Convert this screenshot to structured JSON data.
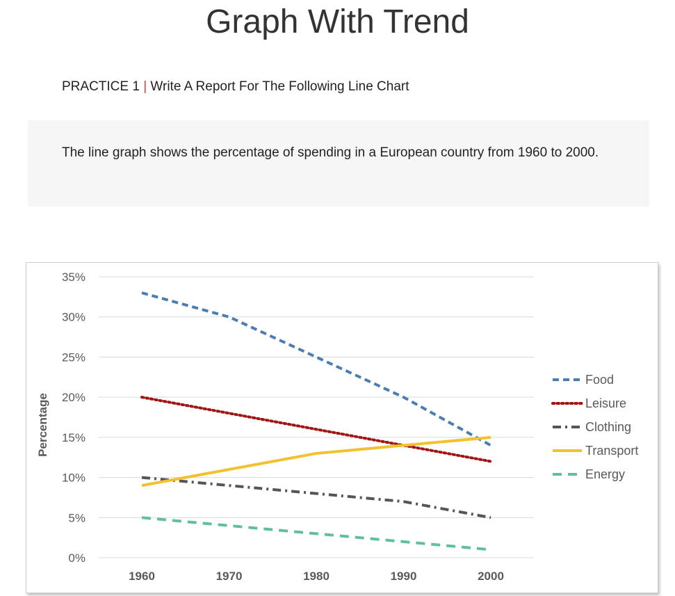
{
  "page": {
    "title": "Graph With  Trend",
    "practice_prefix": "PRACTICE 1",
    "practice_separator": "|",
    "practice_text": "Write A Report For The Following Line Chart",
    "description": "The line graph shows the percentage of spending in a European country from 1960 to 2000."
  },
  "chart_data": {
    "type": "line",
    "title": "",
    "xlabel": "",
    "ylabel": "Percentage",
    "categories": [
      "1960",
      "1970",
      "1980",
      "1990",
      "2000"
    ],
    "y_ticks": [
      "0%",
      "5%",
      "10%",
      "15%",
      "20%",
      "25%",
      "30%",
      "35%"
    ],
    "ylim": [
      0,
      35
    ],
    "grid": true,
    "legend_position": "right",
    "series": [
      {
        "name": "Food",
        "values": [
          33,
          30,
          25,
          20,
          14
        ],
        "color": "#4a7eb2",
        "style": "dashed"
      },
      {
        "name": "Leisure",
        "values": [
          20,
          18,
          16,
          14,
          12
        ],
        "color": "#a31515",
        "style": "dotted"
      },
      {
        "name": "Clothing",
        "values": [
          10,
          9,
          8,
          7,
          5
        ],
        "color": "#555555",
        "style": "dash-dot"
      },
      {
        "name": "Transport",
        "values": [
          9,
          11,
          13,
          14,
          15
        ],
        "color": "#f2c12e",
        "style": "solid"
      },
      {
        "name": "Energy",
        "values": [
          5,
          4,
          3,
          2,
          1
        ],
        "color": "#5fbf9f",
        "style": "long-dash"
      }
    ]
  }
}
